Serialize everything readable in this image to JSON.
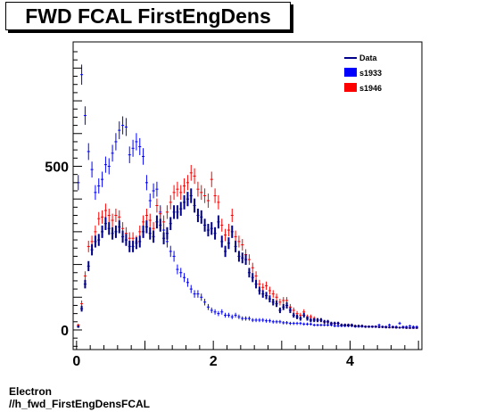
{
  "title": "FWD FCAL FirstEngDens",
  "captions": [
    "Electron",
    "//h_fwd_FirstEngDensFCAL"
  ],
  "chart_data": {
    "type": "scatter",
    "title": "FWD FCAL FirstEngDens",
    "xlabel": "",
    "ylabel": "",
    "xlim": [
      -0.05,
      5.05
    ],
    "ylim": [
      -60,
      880
    ],
    "x_ticks": [
      0,
      2,
      4
    ],
    "y_ticks": [
      0,
      500
    ],
    "legend_position": "top-right",
    "series": [
      {
        "name": "Data",
        "color": "#00008b",
        "x": [
          0.025,
          0.075,
          0.125,
          0.175,
          0.225,
          0.275,
          0.325,
          0.375,
          0.425,
          0.475,
          0.525,
          0.575,
          0.625,
          0.675,
          0.725,
          0.775,
          0.825,
          0.875,
          0.925,
          0.975,
          1.025,
          1.075,
          1.125,
          1.175,
          1.225,
          1.275,
          1.325,
          1.375,
          1.425,
          1.475,
          1.525,
          1.575,
          1.625,
          1.675,
          1.725,
          1.775,
          1.825,
          1.875,
          1.925,
          1.975,
          2.025,
          2.075,
          2.125,
          2.175,
          2.225,
          2.275,
          2.325,
          2.375,
          2.425,
          2.475,
          2.525,
          2.575,
          2.625,
          2.675,
          2.725,
          2.775,
          2.825,
          2.875,
          2.925,
          2.975,
          3.025,
          3.075,
          3.125,
          3.175,
          3.225,
          3.275,
          3.325,
          3.375,
          3.425,
          3.475,
          3.525,
          3.575,
          3.625,
          3.675,
          3.725,
          3.775,
          3.825,
          3.875,
          3.925,
          3.975,
          4.025,
          4.075,
          4.125,
          4.175,
          4.225,
          4.275,
          4.325,
          4.375,
          4.425,
          4.475,
          4.525,
          4.575,
          4.625,
          4.675,
          4.725,
          4.775,
          4.825,
          4.875,
          4.925,
          4.975
        ],
        "y": [
          10,
          65,
          140,
          195,
          245,
          270,
          275,
          300,
          325,
          310,
          295,
          300,
          315,
          285,
          275,
          255,
          255,
          265,
          270,
          300,
          315,
          295,
          285,
          330,
          320,
          280,
          295,
          325,
          360,
          360,
          370,
          390,
          400,
          410,
          380,
          350,
          345,
          320,
          305,
          310,
          295,
          330,
          270,
          240,
          265,
          300,
          255,
          225,
          220,
          215,
          175,
          160,
          140,
          120,
          110,
          105,
          95,
          85,
          80,
          60,
          70,
          75,
          60,
          45,
          40,
          35,
          45,
          35,
          30,
          30,
          30,
          30,
          25,
          25,
          20,
          20,
          20,
          15,
          15,
          15,
          15,
          12,
          12,
          12,
          10,
          10,
          10,
          10,
          9,
          9,
          8,
          8,
          8,
          7,
          7,
          7,
          6,
          6,
          6,
          6
        ]
      },
      {
        "name": "s1933",
        "color": "#0000ff",
        "x": [
          0.025,
          0.075,
          0.125,
          0.175,
          0.225,
          0.275,
          0.325,
          0.375,
          0.425,
          0.475,
          0.525,
          0.575,
          0.625,
          0.675,
          0.725,
          0.775,
          0.825,
          0.875,
          0.925,
          0.975,
          1.025,
          1.075,
          1.125,
          1.175,
          1.225,
          1.275,
          1.325,
          1.375,
          1.425,
          1.475,
          1.525,
          1.575,
          1.625,
          1.675,
          1.725,
          1.775,
          1.825,
          1.875,
          1.925,
          1.975,
          2.025,
          2.075,
          2.125,
          2.175,
          2.225,
          2.275,
          2.325,
          2.375,
          2.425,
          2.475,
          2.525,
          2.575,
          2.625,
          2.675,
          2.725,
          2.775,
          2.825,
          2.875,
          2.925,
          2.975,
          3.025,
          3.075,
          3.125,
          3.175,
          3.225,
          3.275,
          3.325,
          3.375,
          3.425,
          3.475,
          3.525,
          3.575,
          3.625,
          3.675,
          3.725,
          3.775,
          3.825,
          3.875,
          3.925,
          3.975,
          4.025,
          4.075,
          4.125,
          4.175,
          4.225,
          4.275,
          4.325,
          4.375,
          4.425,
          4.475,
          4.525,
          4.575,
          4.625,
          4.675,
          4.725,
          4.775,
          4.825,
          4.875,
          4.925,
          4.975
        ],
        "y": [
          450,
          780,
          655,
          545,
          490,
          420,
          440,
          460,
          505,
          500,
          540,
          575,
          610,
          625,
          620,
          535,
          555,
          575,
          560,
          530,
          450,
          395,
          425,
          430,
          360,
          305,
          270,
          240,
          225,
          185,
          175,
          160,
          145,
          125,
          110,
          110,
          100,
          85,
          70,
          60,
          55,
          50,
          55,
          45,
          45,
          40,
          45,
          40,
          35,
          35,
          35,
          30,
          30,
          30,
          30,
          28,
          28,
          25,
          25,
          25,
          22,
          22,
          20,
          20,
          20,
          20,
          18,
          18,
          18,
          15,
          15,
          15,
          15,
          15,
          15,
          12,
          12,
          12,
          12,
          12,
          12,
          10,
          10,
          10,
          10,
          10,
          10,
          10,
          15,
          10,
          10,
          15,
          10,
          10,
          20,
          10,
          10,
          12,
          10,
          10
        ]
      },
      {
        "name": "s1946",
        "color": "#ff0000",
        "x": [
          0.025,
          0.075,
          0.125,
          0.175,
          0.225,
          0.275,
          0.325,
          0.375,
          0.425,
          0.475,
          0.525,
          0.575,
          0.625,
          0.675,
          0.725,
          0.775,
          0.825,
          0.875,
          0.925,
          0.975,
          1.025,
          1.075,
          1.125,
          1.175,
          1.225,
          1.275,
          1.325,
          1.375,
          1.425,
          1.475,
          1.525,
          1.575,
          1.625,
          1.675,
          1.725,
          1.775,
          1.825,
          1.875,
          1.925,
          1.975,
          2.025,
          2.075,
          2.125,
          2.175,
          2.225,
          2.275,
          2.325,
          2.375,
          2.425,
          2.475,
          2.525,
          2.575,
          2.625,
          2.675,
          2.725,
          2.775,
          2.825,
          2.875,
          2.925,
          2.975,
          3.025,
          3.075,
          3.125,
          3.175,
          3.225,
          3.275,
          3.325,
          3.375,
          3.425,
          3.475,
          3.525,
          3.575,
          3.625,
          3.675,
          3.725,
          3.775,
          3.825,
          3.875,
          3.925,
          3.975,
          4.025,
          4.075,
          4.125,
          4.175,
          4.225,
          4.275,
          4.325,
          4.375,
          4.425,
          4.475,
          4.525,
          4.575,
          4.625,
          4.675,
          4.725,
          4.775,
          4.825,
          4.875,
          4.925,
          4.975
        ],
        "y": [
          15,
          80,
          165,
          255,
          270,
          300,
          340,
          345,
          365,
          350,
          335,
          350,
          345,
          310,
          295,
          280,
          280,
          270,
          300,
          330,
          350,
          335,
          310,
          380,
          355,
          330,
          360,
          390,
          420,
          430,
          420,
          440,
          450,
          480,
          470,
          430,
          420,
          410,
          395,
          460,
          410,
          390,
          320,
          290,
          305,
          350,
          285,
          270,
          260,
          230,
          215,
          190,
          165,
          140,
          130,
          135,
          120,
          110,
          100,
          85,
          90,
          90,
          70,
          60,
          50,
          45,
          55,
          40,
          40,
          35,
          30,
          30,
          25,
          25,
          20,
          20,
          20,
          15,
          15,
          15,
          15,
          12,
          12,
          12,
          10,
          10,
          10,
          10,
          9,
          9,
          8,
          8,
          8,
          7,
          7,
          7,
          6,
          6,
          6,
          6
        ]
      }
    ]
  }
}
